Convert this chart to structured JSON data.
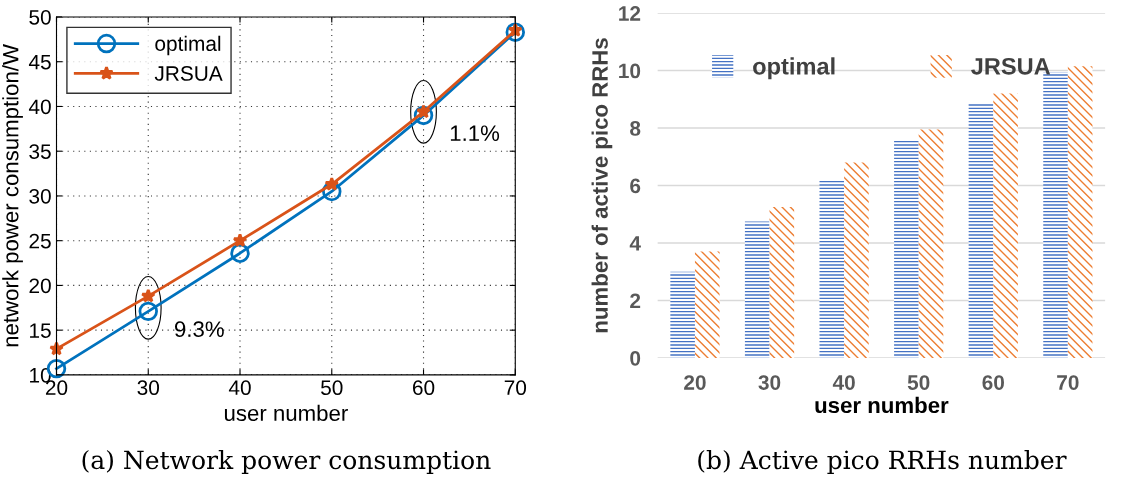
{
  "chart_data": [
    {
      "type": "line",
      "title": "(a) Network power consumption",
      "xlabel": "user number",
      "ylabel": "network power consumption/W",
      "x": [
        20,
        30,
        40,
        50,
        60,
        70
      ],
      "series": [
        {
          "name": "optimal",
          "color": "#0072bd",
          "marker": "circle",
          "values": [
            10.7,
            17.1,
            23.6,
            30.5,
            39.0,
            48.3
          ]
        },
        {
          "name": "JRSUA",
          "color": "#d95319",
          "marker": "star",
          "values": [
            12.9,
            18.8,
            25.0,
            31.3,
            39.4,
            48.5
          ]
        }
      ],
      "xlim": [
        20,
        70
      ],
      "xticks": [
        20,
        30,
        40,
        50,
        60,
        70
      ],
      "ylim": [
        10,
        50
      ],
      "yticks": [
        10,
        15,
        20,
        25,
        30,
        35,
        40,
        45,
        50
      ],
      "grid": true,
      "legend": "top left",
      "annotations": [
        {
          "text": "9.3%",
          "x": 30,
          "y": 17.1
        },
        {
          "text": "1.1%",
          "x": 60,
          "y": 39.0
        }
      ]
    },
    {
      "type": "bar",
      "title": "(b) Active pico RRHs number",
      "xlabel": "user number",
      "ylabel": "number of active pico RRHs",
      "categories": [
        "20",
        "30",
        "40",
        "50",
        "60",
        "70"
      ],
      "series": [
        {
          "name": "optimal",
          "color": "#4472c4",
          "values": [
            3.0,
            4.75,
            6.2,
            7.6,
            8.85,
            9.95
          ]
        },
        {
          "name": "JRSUA",
          "color": "#ed7d31",
          "values": [
            3.7,
            5.25,
            6.8,
            7.95,
            9.2,
            10.15
          ]
        }
      ],
      "ylim": [
        0,
        12
      ],
      "yticks": [
        0,
        2,
        4,
        6,
        8,
        10,
        12
      ],
      "grid": "y",
      "legend": "top"
    }
  ]
}
